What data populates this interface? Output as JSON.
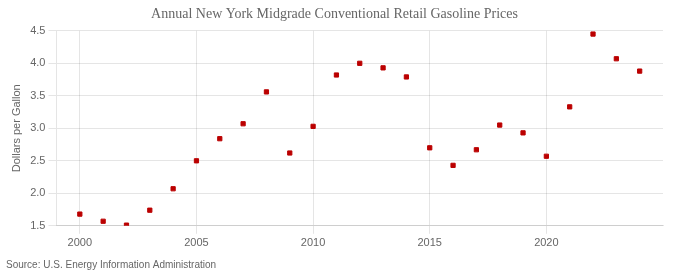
{
  "chart_data": {
    "type": "scatter",
    "title": "Annual New York Midgrade Conventional Retail Gasoline Prices",
    "ylabel": "Dollars per Gallon",
    "source": "Source: U.S. Energy Information Administration",
    "x": [
      2000,
      2001,
      2002,
      2003,
      2004,
      2005,
      2006,
      2007,
      2008,
      2009,
      2010,
      2011,
      2012,
      2013,
      2014,
      2015,
      2016,
      2017,
      2018,
      2019,
      2020,
      2021,
      2022,
      2023,
      2024
    ],
    "values": [
      1.68,
      1.57,
      1.51,
      1.74,
      2.07,
      2.5,
      2.84,
      3.07,
      3.56,
      2.62,
      3.03,
      3.82,
      4.0,
      3.93,
      3.79,
      2.7,
      2.43,
      2.67,
      3.05,
      2.93,
      2.57,
      3.33,
      4.45,
      4.07,
      3.88
    ],
    "color": "#bb0000",
    "marker": "square",
    "xlim": [
      1999,
      2025
    ],
    "xticks": [
      2000,
      2005,
      2010,
      2015,
      2020
    ],
    "ylim": [
      1.5,
      4.5
    ],
    "yticks": [
      1.5,
      {
        "value": 2,
        "label": "2.0"
      },
      2.5,
      {
        "value": 3,
        "label": "3.0"
      },
      3.5,
      {
        "value": 4,
        "label": "4.0"
      },
      4.5
    ],
    "grid": true
  }
}
